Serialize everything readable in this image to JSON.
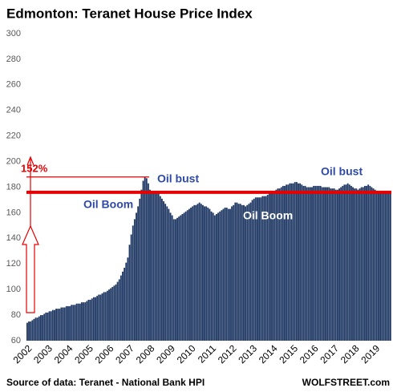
{
  "chart_data": {
    "type": "bar",
    "title": "Edmonton: Teranet House Price Index",
    "source": "Source of data: Teranet - National Bank HPI",
    "credit": "WOLFSTREET.com",
    "annotations": [
      "152%",
      "Oil bust",
      "Oil Boom",
      "Oil Boom",
      "Oil bust"
    ],
    "color": "#1f3864",
    "reference_line": 176,
    "reference_color": "#e60000",
    "peak_line": 188,
    "ylim": [
      60,
      300
    ],
    "yticks": [
      60,
      80,
      100,
      120,
      140,
      160,
      180,
      200,
      220,
      240,
      260,
      280,
      300
    ],
    "categories": [
      "2002",
      null,
      null,
      null,
      null,
      null,
      null,
      null,
      null,
      null,
      null,
      null,
      "2003",
      null,
      null,
      null,
      null,
      null,
      null,
      null,
      null,
      null,
      null,
      null,
      "2004",
      null,
      null,
      null,
      null,
      null,
      null,
      null,
      null,
      null,
      null,
      null,
      "2005",
      null,
      null,
      null,
      null,
      null,
      null,
      null,
      null,
      null,
      null,
      null,
      "2006",
      null,
      null,
      null,
      null,
      null,
      null,
      null,
      null,
      null,
      null,
      null,
      "2007",
      null,
      null,
      null,
      null,
      null,
      null,
      null,
      null,
      null,
      null,
      null,
      "2008",
      null,
      null,
      null,
      null,
      null,
      null,
      null,
      null,
      null,
      null,
      null,
      "2009",
      null,
      null,
      null,
      null,
      null,
      null,
      null,
      null,
      null,
      null,
      null,
      "2010",
      null,
      null,
      null,
      null,
      null,
      null,
      null,
      null,
      null,
      null,
      null,
      "2011",
      null,
      null,
      null,
      null,
      null,
      null,
      null,
      null,
      null,
      null,
      null,
      "2012",
      null,
      null,
      null,
      null,
      null,
      null,
      null,
      null,
      null,
      null,
      null,
      "2013",
      null,
      null,
      null,
      null,
      null,
      null,
      null,
      null,
      null,
      null,
      null,
      "2014",
      null,
      null,
      null,
      null,
      null,
      null,
      null,
      null,
      null,
      null,
      null,
      "2015",
      null,
      null,
      null,
      null,
      null,
      null,
      null,
      null,
      null,
      null,
      null,
      "2016",
      null,
      null,
      null,
      null,
      null,
      null,
      null,
      null,
      null,
      null,
      null,
      "2017",
      null,
      null,
      null,
      null,
      null,
      null,
      null,
      null,
      null,
      null,
      null,
      "2018",
      null,
      null,
      null,
      null,
      null,
      null,
      null,
      null,
      null,
      null,
      null,
      "2019",
      null,
      null,
      null,
      null,
      null,
      null,
      null,
      null,
      null
    ],
    "values": [
      74,
      75,
      75,
      76,
      77,
      78,
      78,
      79,
      80,
      80,
      81,
      82,
      82,
      83,
      83,
      84,
      84,
      85,
      85,
      85,
      86,
      86,
      86,
      87,
      87,
      87,
      88,
      88,
      88,
      89,
      89,
      89,
      90,
      90,
      90,
      91,
      92,
      92,
      93,
      94,
      94,
      95,
      96,
      96,
      97,
      98,
      98,
      99,
      100,
      101,
      102,
      103,
      104,
      106,
      108,
      111,
      114,
      117,
      121,
      125,
      135,
      143,
      150,
      155,
      160,
      165,
      171,
      178,
      185,
      188,
      187,
      183,
      178,
      177,
      177,
      176,
      176,
      175,
      173,
      171,
      169,
      167,
      165,
      163,
      160,
      158,
      155,
      155,
      156,
      157,
      158,
      159,
      160,
      161,
      162,
      163,
      164,
      165,
      166,
      166,
      167,
      168,
      167,
      166,
      165,
      165,
      164,
      163,
      161,
      160,
      158,
      159,
      160,
      161,
      162,
      163,
      164,
      164,
      163,
      163,
      165,
      166,
      168,
      168,
      167,
      167,
      166,
      166,
      165,
      166,
      167,
      168,
      170,
      171,
      172,
      172,
      172,
      172,
      173,
      173,
      173,
      174,
      175,
      176,
      176,
      177,
      178,
      179,
      179,
      180,
      181,
      181,
      182,
      182,
      183,
      183,
      183,
      184,
      184,
      183,
      183,
      182,
      181,
      181,
      180,
      180,
      180,
      180,
      181,
      181,
      181,
      181,
      181,
      180,
      180,
      180,
      180,
      180,
      179,
      179,
      179,
      178,
      178,
      179,
      180,
      181,
      182,
      182,
      183,
      182,
      181,
      180,
      179,
      179,
      178,
      179,
      180,
      180,
      181,
      181,
      182,
      181,
      180,
      179,
      178,
      177,
      176,
      176,
      176,
      176,
      176,
      176,
      176,
      176
    ]
  }
}
